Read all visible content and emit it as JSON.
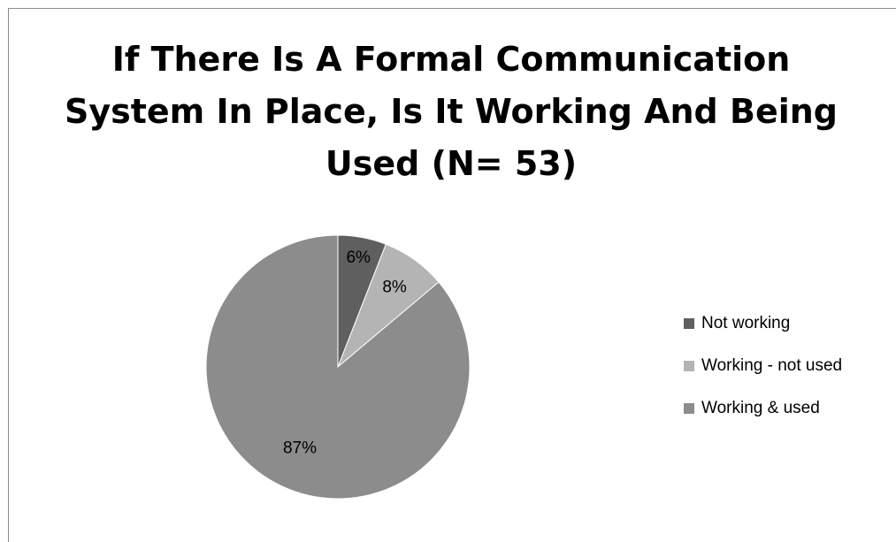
{
  "chart_data": {
    "type": "pie",
    "title_lines": [
      "If There Is A Formal Communication",
      "System In Place, Is It Working And Being",
      "Used (N= 53)"
    ],
    "start_angle_deg": 0,
    "direction": "clockwise",
    "legend_position": "right",
    "slices": [
      {
        "label": "Not working",
        "value": 6,
        "display": "6%",
        "color": "#5f5f5f"
      },
      {
        "label": "Working - not used",
        "value": 8,
        "display": "8%",
        "color": "#b4b4b4"
      },
      {
        "label": "Working & used",
        "value": 87,
        "display": "87%",
        "color": "#8c8c8c"
      }
    ]
  }
}
